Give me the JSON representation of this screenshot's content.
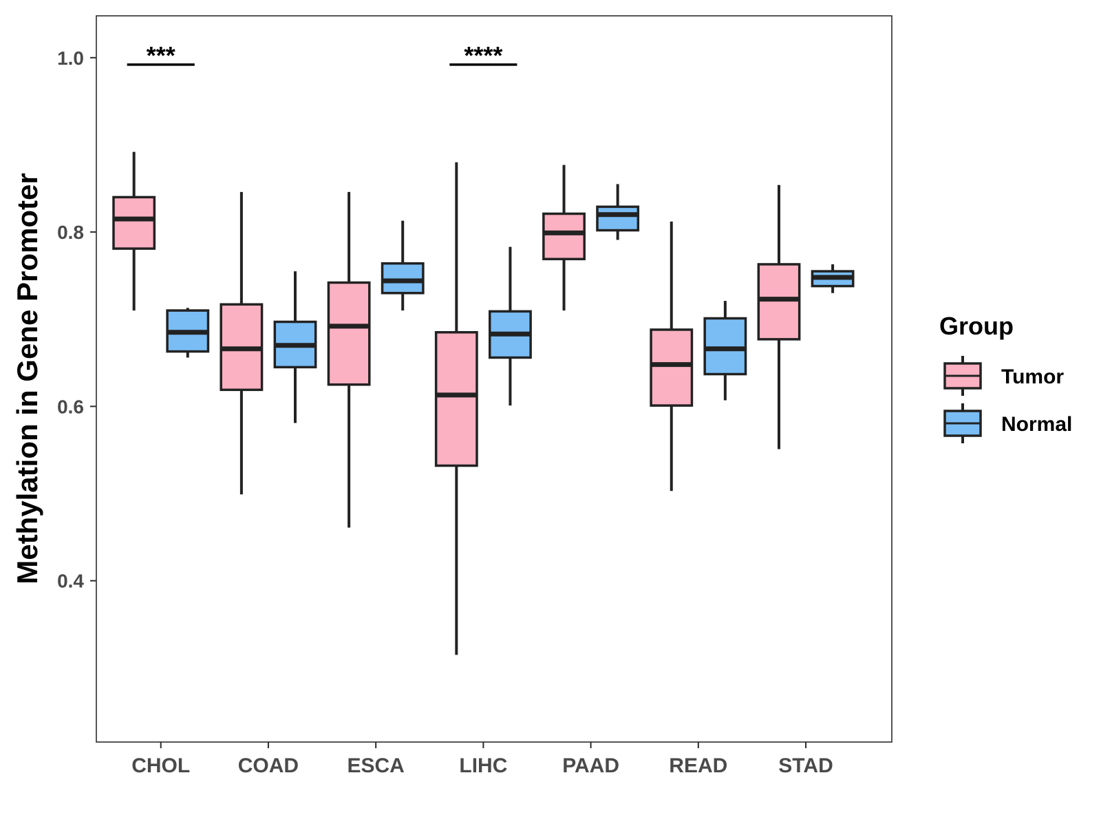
{
  "chart_data": {
    "type": "boxplot",
    "title": "",
    "xlabel": "",
    "ylabel": "Methylation in Gene Promoter",
    "ylim": [
      0.215,
      1.048
    ],
    "yticks": [
      0.4,
      0.6,
      0.8,
      1.0
    ],
    "ytick_labels": [
      "0.4",
      "0.6",
      "0.8",
      "1.0"
    ],
    "grid": false,
    "categories": [
      "CHOL",
      "COAD",
      "ESCA",
      "LIHC",
      "PAAD",
      "READ",
      "STAD"
    ],
    "legend": {
      "title": "Group",
      "position": "right",
      "entries": [
        "Tumor",
        "Normal"
      ]
    },
    "series": [
      {
        "name": "Tumor",
        "color": "#FBB1C2",
        "boxes": [
          {
            "category": "CHOL",
            "min": 0.71,
            "q1": 0.781,
            "median": 0.815,
            "q3": 0.84,
            "max": 0.892
          },
          {
            "category": "COAD",
            "min": 0.499,
            "q1": 0.619,
            "median": 0.666,
            "q3": 0.717,
            "max": 0.846
          },
          {
            "category": "ESCA",
            "min": 0.461,
            "q1": 0.625,
            "median": 0.692,
            "q3": 0.742,
            "max": 0.846
          },
          {
            "category": "LIHC",
            "min": 0.315,
            "q1": 0.532,
            "median": 0.613,
            "q3": 0.685,
            "max": 0.88
          },
          {
            "category": "PAAD",
            "min": 0.71,
            "q1": 0.769,
            "median": 0.799,
            "q3": 0.821,
            "max": 0.877
          },
          {
            "category": "READ",
            "min": 0.503,
            "q1": 0.601,
            "median": 0.648,
            "q3": 0.688,
            "max": 0.812
          },
          {
            "category": "STAD",
            "min": 0.551,
            "q1": 0.677,
            "median": 0.723,
            "q3": 0.763,
            "max": 0.854
          }
        ]
      },
      {
        "name": "Normal",
        "color": "#7ABDF5",
        "boxes": [
          {
            "category": "CHOL",
            "min": 0.656,
            "q1": 0.663,
            "median": 0.685,
            "q3": 0.71,
            "max": 0.713
          },
          {
            "category": "COAD",
            "min": 0.581,
            "q1": 0.645,
            "median": 0.67,
            "q3": 0.697,
            "max": 0.755
          },
          {
            "category": "ESCA",
            "min": 0.71,
            "q1": 0.73,
            "median": 0.744,
            "q3": 0.764,
            "max": 0.813
          },
          {
            "category": "LIHC",
            "min": 0.601,
            "q1": 0.656,
            "median": 0.683,
            "q3": 0.709,
            "max": 0.783
          },
          {
            "category": "PAAD",
            "min": 0.791,
            "q1": 0.802,
            "median": 0.82,
            "q3": 0.829,
            "max": 0.855
          },
          {
            "category": "READ",
            "min": 0.607,
            "q1": 0.637,
            "median": 0.666,
            "q3": 0.701,
            "max": 0.721
          },
          {
            "category": "STAD",
            "min": 0.73,
            "q1": 0.738,
            "median": 0.748,
            "q3": 0.755,
            "max": 0.763
          }
        ]
      }
    ],
    "annotations": [
      {
        "category": "CHOL",
        "label": "***",
        "y": 0.992
      },
      {
        "category": "LIHC",
        "label": "****",
        "y": 0.992
      }
    ]
  }
}
